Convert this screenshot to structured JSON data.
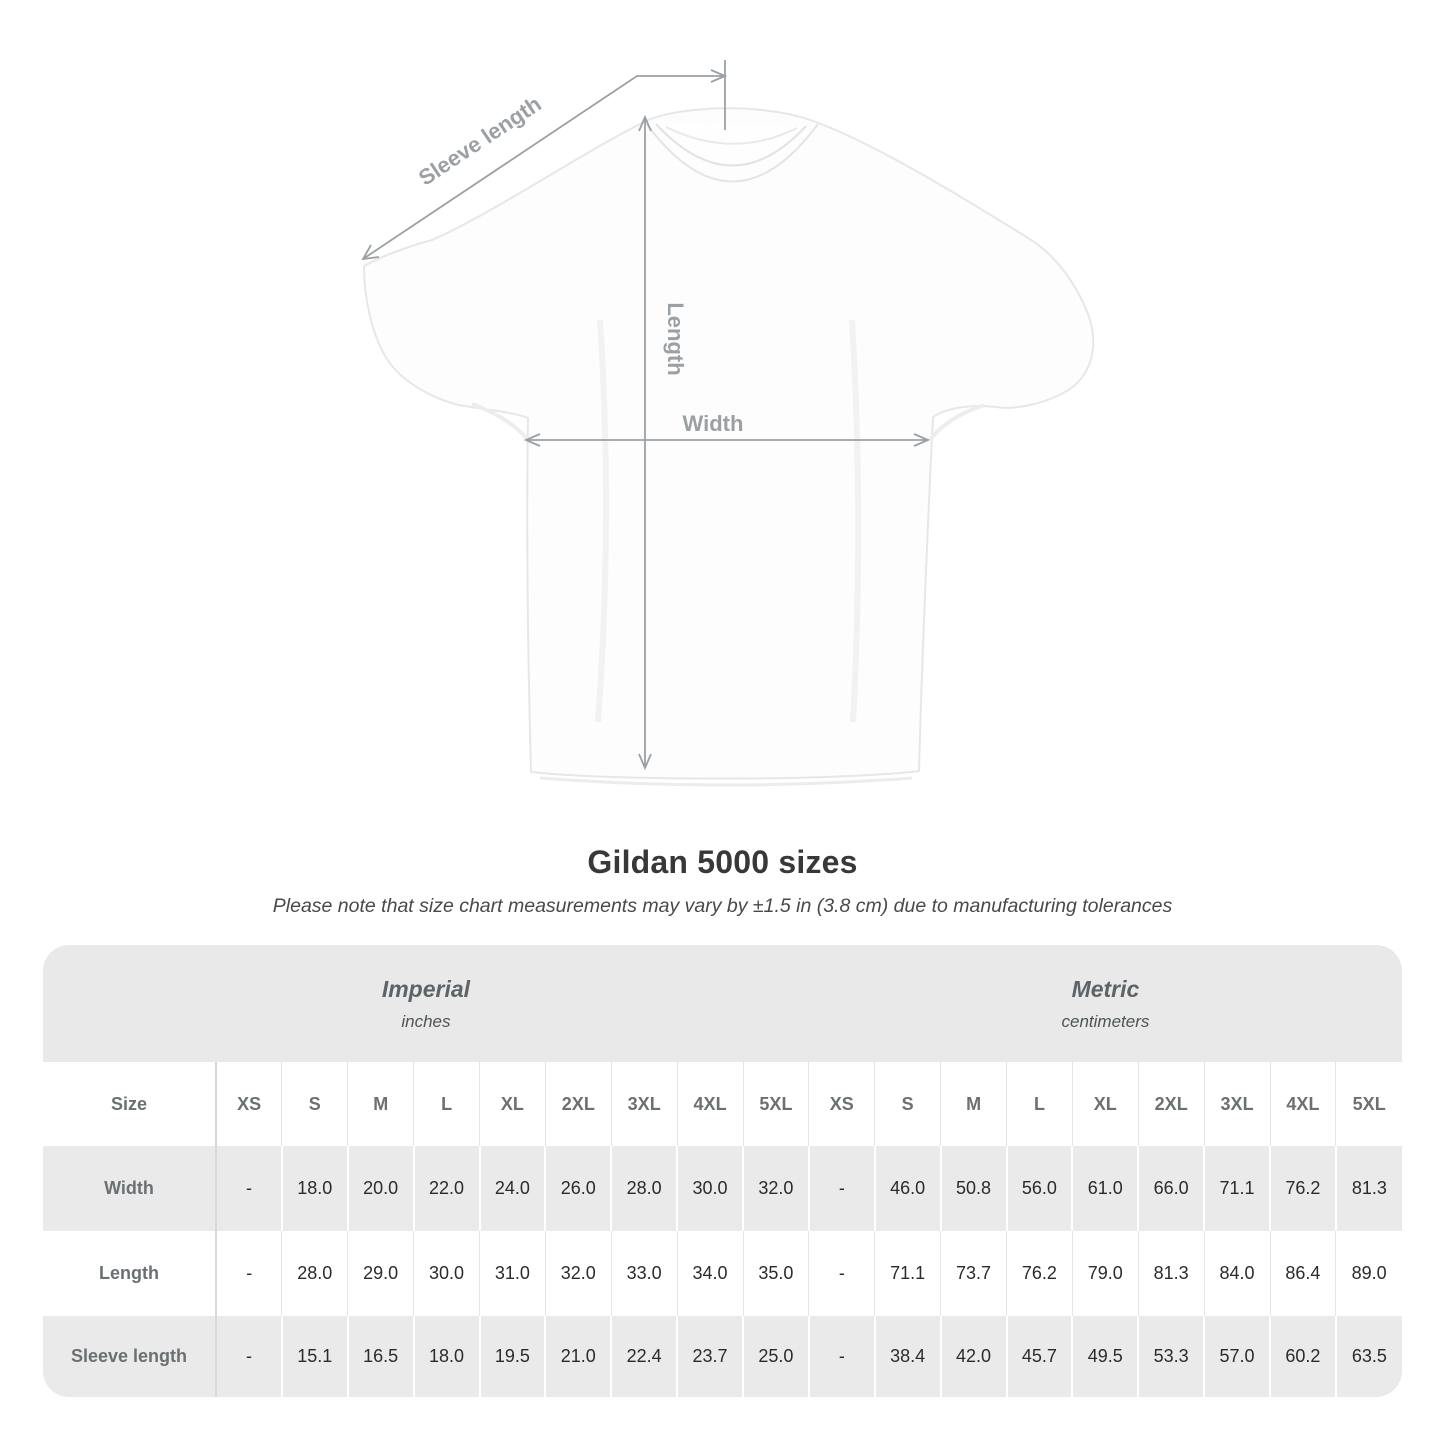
{
  "diagram": {
    "sleeve_length_label": "Sleeve length",
    "length_label": "Length",
    "width_label": "Width"
  },
  "header": {
    "title": "Gildan 5000 sizes",
    "subtitle": "Please note that size chart measurements may vary by ±1.5 in (3.8 cm) due to manufacturing tolerances"
  },
  "table": {
    "size_header": "Size",
    "unit_groups": [
      {
        "label": "Imperial",
        "sublabel": "inches"
      },
      {
        "label": "Metric",
        "sublabel": "centimeters"
      }
    ],
    "sizes": [
      "XS",
      "S",
      "M",
      "L",
      "XL",
      "2XL",
      "3XL",
      "4XL",
      "5XL"
    ],
    "rows": [
      {
        "label": "Width",
        "imperial": [
          "-",
          "18.0",
          "20.0",
          "22.0",
          "24.0",
          "26.0",
          "28.0",
          "30.0",
          "32.0"
        ],
        "metric": [
          "-",
          "46.0",
          "50.8",
          "56.0",
          "61.0",
          "66.0",
          "71.1",
          "76.2",
          "81.3"
        ]
      },
      {
        "label": "Length",
        "imperial": [
          "-",
          "28.0",
          "29.0",
          "30.0",
          "31.0",
          "32.0",
          "33.0",
          "34.0",
          "35.0"
        ],
        "metric": [
          "-",
          "71.1",
          "73.7",
          "76.2",
          "79.0",
          "81.3",
          "84.0",
          "86.4",
          "89.0"
        ]
      },
      {
        "label": "Sleeve length",
        "imperial": [
          "-",
          "15.1",
          "16.5",
          "18.0",
          "19.5",
          "21.0",
          "22.4",
          "23.7",
          "25.0"
        ],
        "metric": [
          "-",
          "38.4",
          "42.0",
          "45.7",
          "49.5",
          "53.3",
          "57.0",
          "60.2",
          "63.5"
        ]
      }
    ]
  },
  "colors": {
    "dimension_lines": "#9aa0a4",
    "band_bg": "#e9e9e9",
    "alt_row_bg": "#eaeaea",
    "header_text": "#6b7073",
    "value_text": "#2b2b2b",
    "title_text": "#383838",
    "shirt_outline": "#e7e7e7"
  }
}
